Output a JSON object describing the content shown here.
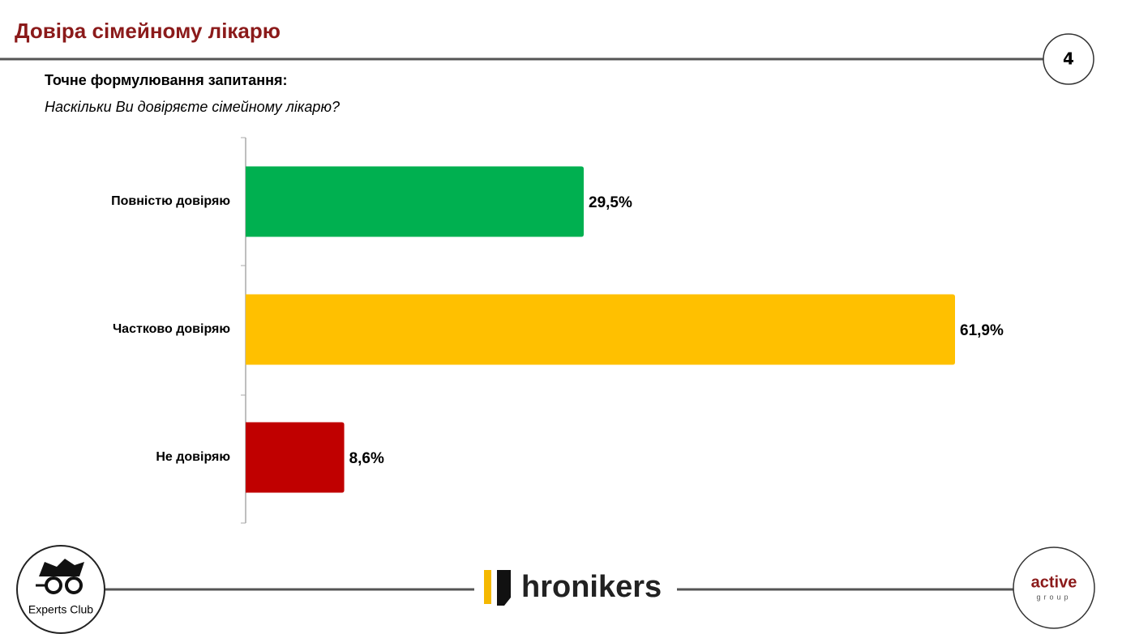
{
  "header": {
    "title": "Довіра сімейному лікарю",
    "page_number": "4"
  },
  "question": {
    "label": "Точне формулювання запитання:",
    "text": "Наскільки Ви довіряєте сімейному лікарю?"
  },
  "chart_data": {
    "type": "bar",
    "orientation": "horizontal",
    "categories": [
      "Повністю довіряю",
      "Частково довіряю",
      "Не довіряю"
    ],
    "values": [
      29.5,
      61.9,
      8.6
    ],
    "value_labels": [
      "29,5%",
      "61,9%",
      "8,6%"
    ],
    "colors": [
      "#00b050",
      "#ffc000",
      "#c00000"
    ]
  },
  "footer": {
    "left_logo": "Experts Club",
    "center_logo": "hronikers",
    "right_logo": "active",
    "right_logo_sub": "group"
  }
}
